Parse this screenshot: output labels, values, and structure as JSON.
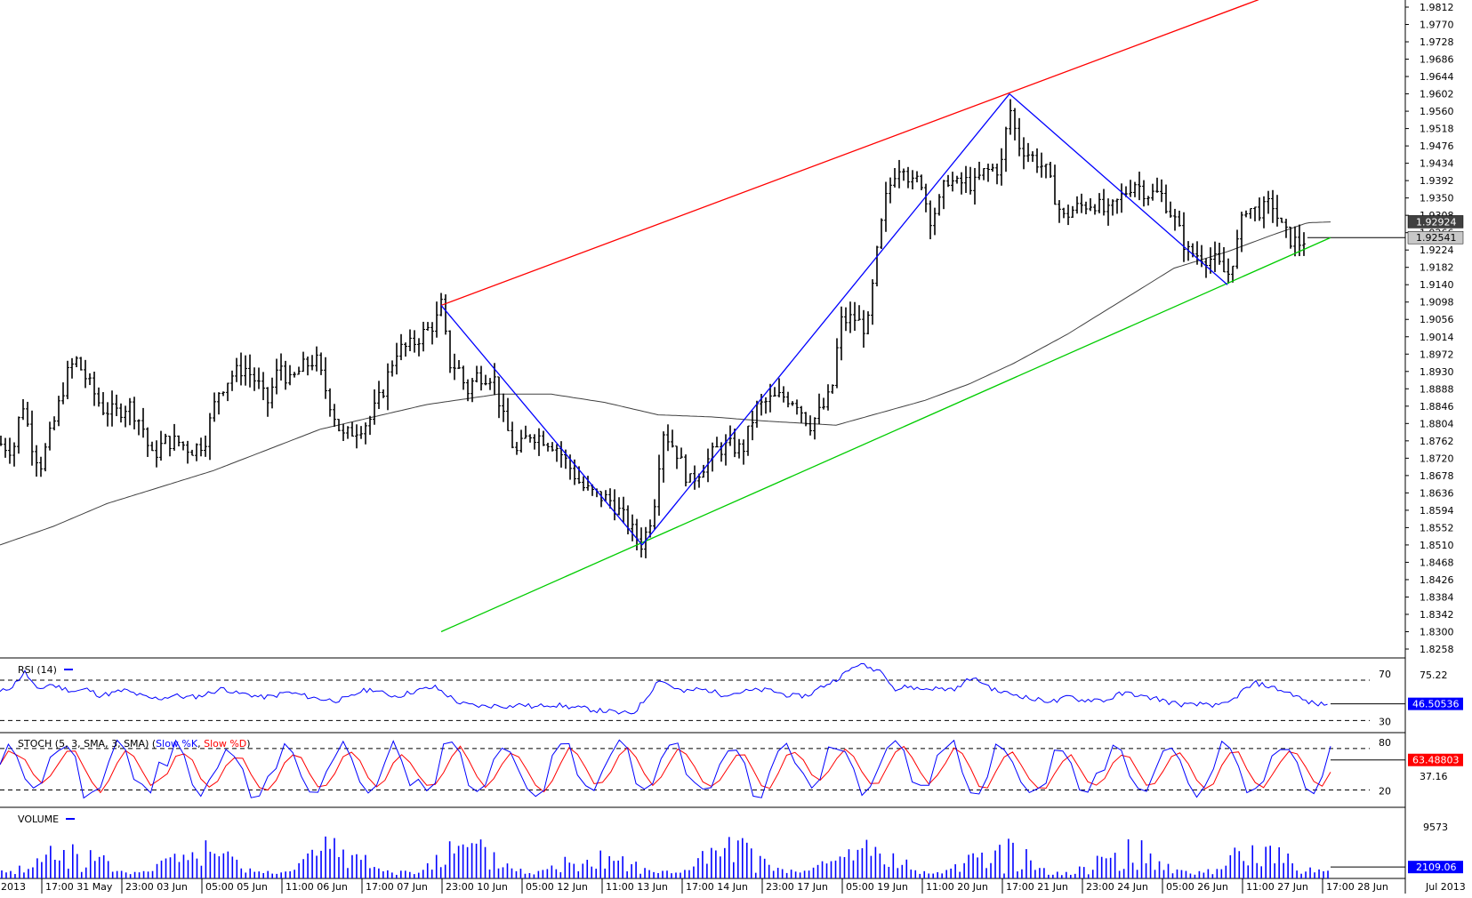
{
  "chart_data": [
    {
      "type": "candlestick",
      "panel": "price",
      "title": "",
      "y_axis": {
        "ylim": [
          1.8258,
          1.9812
        ],
        "ticks": [
          "1.9812",
          "1.9770",
          "1.9728",
          "1.9686",
          "1.9644",
          "1.9602",
          "1.9560",
          "1.9518",
          "1.9476",
          "1.9434",
          "1.9392",
          "1.9350",
          "1.9308",
          "1.9266",
          "1.9224",
          "1.9182",
          "1.9140",
          "1.9098",
          "1.9056",
          "1.9014",
          "1.8972",
          "1.8930",
          "1.8888",
          "1.8846",
          "1.8804",
          "1.8762",
          "1.8720",
          "1.8678",
          "1.8636",
          "1.8594",
          "1.8552",
          "1.8510",
          "1.8468",
          "1.8426",
          "1.8384",
          "1.8342",
          "1.8300",
          "1.8258"
        ],
        "labels": [
          {
            "text": "1.92924",
            "value": 1.92924,
            "bg": "#404040",
            "fg": "#ffffff"
          },
          {
            "text": "1.92541",
            "value": 1.92541,
            "bg": "#c8c8c8",
            "fg": "#000000"
          }
        ]
      },
      "x_axis": {
        "ticks": [
          "2013",
          "17:00 31 May",
          "23:00 03 Jun",
          "05:00 05 Jun",
          "11:00 06 Jun",
          "17:00 07 Jun",
          "23:00 10 Jun",
          "05:00 12 Jun",
          "11:00 13 Jun",
          "17:00 14 Jun",
          "23:00 17 Jun",
          "05:00 19 Jun",
          "11:00 20 Jun",
          "17:00 21 Jun",
          "23:00 24 Jun",
          "05:00 26 Jun",
          "11:00 27 Jun",
          "17:00 28 Jun",
          "Jul 2013"
        ]
      },
      "ohlc_anchors": [
        [
          0,
          1.8755
        ],
        [
          15,
          1.874
        ],
        [
          25,
          1.886
        ],
        [
          35,
          1.876
        ],
        [
          45,
          1.87
        ],
        [
          60,
          1.88
        ],
        [
          75,
          1.892
        ],
        [
          85,
          1.896
        ],
        [
          100,
          1.89
        ],
        [
          115,
          1.884
        ],
        [
          130,
          1.883
        ],
        [
          145,
          1.885
        ],
        [
          160,
          1.88
        ],
        [
          170,
          1.872
        ],
        [
          185,
          1.876
        ],
        [
          200,
          1.876
        ],
        [
          215,
          1.874
        ],
        [
          230,
          1.876
        ],
        [
          245,
          1.888
        ],
        [
          260,
          1.892
        ],
        [
          275,
          1.894
        ],
        [
          290,
          1.89
        ],
        [
          300,
          1.885
        ],
        [
          315,
          1.895
        ],
        [
          325,
          1.89
        ],
        [
          340,
          1.894
        ],
        [
          355,
          1.896
        ],
        [
          370,
          1.886
        ],
        [
          385,
          1.877
        ],
        [
          400,
          1.879
        ],
        [
          415,
          1.881
        ],
        [
          430,
          1.888
        ],
        [
          445,
          1.898
        ],
        [
          460,
          1.899
        ],
        [
          475,
          1.902
        ],
        [
          490,
          1.905
        ],
        [
          496,
          1.909
        ],
        [
          505,
          1.895
        ],
        [
          515,
          1.894
        ],
        [
          525,
          1.888
        ],
        [
          535,
          1.892
        ],
        [
          545,
          1.892
        ],
        [
          555,
          1.892
        ],
        [
          565,
          1.882
        ],
        [
          580,
          1.873
        ],
        [
          595,
          1.878
        ],
        [
          610,
          1.877
        ],
        [
          625,
          1.875
        ],
        [
          640,
          1.87
        ],
        [
          655,
          1.865
        ],
        [
          670,
          1.863
        ],
        [
          685,
          1.862
        ],
        [
          700,
          1.858
        ],
        [
          712,
          1.854
        ],
        [
          722,
          1.851
        ],
        [
          735,
          1.86
        ],
        [
          745,
          1.879
        ],
        [
          760,
          1.874
        ],
        [
          775,
          1.866
        ],
        [
          790,
          1.87
        ],
        [
          805,
          1.874
        ],
        [
          820,
          1.875
        ],
        [
          835,
          1.874
        ],
        [
          850,
          1.884
        ],
        [
          865,
          1.886
        ],
        [
          880,
          1.887
        ],
        [
          895,
          1.886
        ],
        [
          910,
          1.88
        ],
        [
          925,
          1.884
        ],
        [
          935,
          1.888
        ],
        [
          945,
          1.905
        ],
        [
          960,
          1.906
        ],
        [
          975,
          1.903
        ],
        [
          985,
          1.92
        ],
        [
          995,
          1.934
        ],
        [
          1005,
          1.941
        ],
        [
          1015,
          1.944
        ],
        [
          1025,
          1.938
        ],
        [
          1035,
          1.94
        ],
        [
          1045,
          1.93
        ],
        [
          1055,
          1.933
        ],
        [
          1065,
          1.94
        ],
        [
          1075,
          1.938
        ],
        [
          1085,
          1.939
        ],
        [
          1095,
          1.938
        ],
        [
          1105,
          1.941
        ],
        [
          1115,
          1.942
        ],
        [
          1125,
          1.942
        ],
        [
          1135,
          1.957
        ],
        [
          1145,
          1.948
        ],
        [
          1155,
          1.946
        ],
        [
          1165,
          1.944
        ],
        [
          1175,
          1.942
        ],
        [
          1185,
          1.936
        ],
        [
          1195,
          1.93
        ],
        [
          1205,
          1.932
        ],
        [
          1215,
          1.933
        ],
        [
          1230,
          1.934
        ],
        [
          1245,
          1.931
        ],
        [
          1260,
          1.935
        ],
        [
          1275,
          1.939
        ],
        [
          1290,
          1.936
        ],
        [
          1305,
          1.936
        ],
        [
          1320,
          1.93
        ],
        [
          1335,
          1.922
        ],
        [
          1350,
          1.921
        ],
        [
          1365,
          1.92
        ],
        [
          1380,
          1.916
        ],
        [
          1390,
          1.923
        ],
        [
          1400,
          1.933
        ],
        [
          1410,
          1.932
        ],
        [
          1420,
          1.932
        ],
        [
          1430,
          1.934
        ],
        [
          1440,
          1.928
        ],
        [
          1450,
          1.925
        ],
        [
          1460,
          1.924
        ],
        [
          1470,
          1.9254
        ]
      ],
      "ma_anchors": [
        [
          0,
          1.851
        ],
        [
          60,
          1.8555
        ],
        [
          120,
          1.861
        ],
        [
          180,
          1.865
        ],
        [
          240,
          1.869
        ],
        [
          300,
          1.874
        ],
        [
          360,
          1.879
        ],
        [
          420,
          1.882
        ],
        [
          480,
          1.885
        ],
        [
          560,
          1.8875
        ],
        [
          620,
          1.8875
        ],
        [
          680,
          1.8855
        ],
        [
          740,
          1.8825
        ],
        [
          800,
          1.882
        ],
        [
          860,
          1.881
        ],
        [
          900,
          1.8805
        ],
        [
          940,
          1.88
        ],
        [
          990,
          1.883
        ],
        [
          1040,
          1.886
        ],
        [
          1090,
          1.89
        ],
        [
          1140,
          1.895
        ],
        [
          1200,
          1.902
        ],
        [
          1260,
          1.91
        ],
        [
          1320,
          1.918
        ],
        [
          1380,
          1.922
        ],
        [
          1430,
          1.926
        ],
        [
          1470,
          1.929
        ],
        [
          1496,
          1.9292
        ]
      ],
      "trendlines": [
        {
          "name": "upper-channel",
          "color": "#ff0000",
          "points": [
            [
              496,
              1.909
            ],
            [
              1415,
              1.983
            ]
          ]
        },
        {
          "name": "lower-channel",
          "color": "#00cc00",
          "points": [
            [
              496,
              1.83
            ],
            [
              1496,
              1.9254
            ]
          ]
        },
        {
          "name": "wave-1",
          "color": "#0000ff",
          "points": [
            [
              496,
              1.909
            ],
            [
              722,
              1.851
            ]
          ]
        },
        {
          "name": "wave-2",
          "color": "#0000ff",
          "points": [
            [
              722,
              1.851
            ],
            [
              1135,
              1.9602
            ]
          ]
        },
        {
          "name": "wave-3",
          "color": "#0000ff",
          "points": [
            [
              1135,
              1.9602
            ],
            [
              1380,
              1.914
            ]
          ]
        }
      ]
    },
    {
      "type": "line",
      "panel": "rsi",
      "legend": "RSI (14)",
      "levels": [
        "70",
        "30"
      ],
      "scale_label": "75.22",
      "current": "46.50536",
      "ylim": [
        18,
        92
      ],
      "series": [
        {
          "values": [
            58,
            64,
            78,
            60,
            66,
            62,
            59,
            61,
            55,
            57,
            60,
            56,
            52,
            52,
            55,
            53,
            54,
            58,
            62,
            57,
            56,
            53,
            54,
            58,
            56,
            53,
            51,
            50,
            52,
            59,
            61,
            56,
            54,
            58,
            61,
            63,
            55,
            47,
            45,
            44,
            45,
            44,
            46,
            43,
            46,
            45,
            43,
            42,
            40,
            39,
            37,
            38,
            53,
            71,
            64,
            58,
            61,
            60,
            56,
            57,
            59,
            60,
            60,
            56,
            54,
            55,
            63,
            69,
            77,
            86,
            82,
            79,
            60,
            64,
            61,
            62,
            61,
            62,
            72,
            68,
            60,
            57,
            55,
            51,
            50,
            49,
            54,
            50,
            51,
            50,
            56,
            57,
            53,
            52,
            48,
            46,
            45,
            47,
            44,
            49,
            60,
            67,
            64,
            60,
            56,
            49,
            46,
            47
          ]
        }
      ]
    },
    {
      "type": "line",
      "panel": "stochastic",
      "legend": "STOCH (5, 3, SMA, 3, SMA)",
      "legend_series": [
        "Slow %K",
        "Slow %D"
      ],
      "levels": [
        "80",
        "20"
      ],
      "scale_label": "37.16",
      "current": "63.48803",
      "ylim": [
        -5,
        103
      ],
      "k_points": 160
    },
    {
      "type": "bar",
      "panel": "volume",
      "legend": "VOLUME",
      "scale_label": "9573",
      "current": "2109.06",
      "ylim": [
        0,
        12500
      ],
      "bars": 300
    }
  ]
}
